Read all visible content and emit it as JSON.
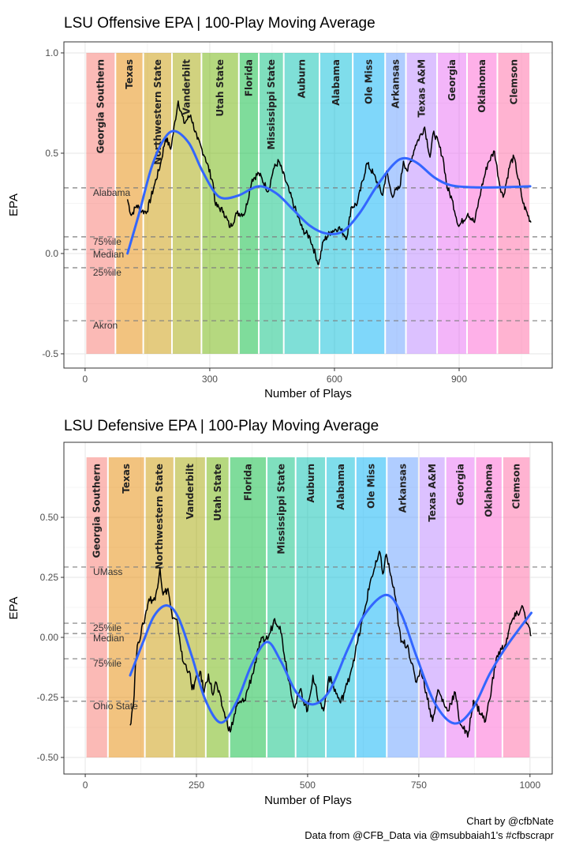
{
  "chart_data": [
    {
      "type": "line",
      "title": "LSU Offensive EPA | 100-Play Moving Average",
      "xlabel": "Number of Plays",
      "ylabel": "EPA",
      "xlim": [
        -51,
        1124
      ],
      "ylim": [
        -0.571,
        1.055
      ],
      "xticks": [
        {
          "value": 0,
          "label": "0"
        },
        {
          "value": 300,
          "label": "300"
        },
        {
          "value": 600,
          "label": "600"
        },
        {
          "value": 900,
          "label": "900"
        }
      ],
      "yticks": [
        {
          "value": 1.0,
          "label": "1.0"
        },
        {
          "value": 0.5,
          "label": "0.5"
        },
        {
          "value": 0.0,
          "label": "0.0"
        },
        {
          "value": -0.5,
          "label": "-0.5"
        }
      ],
      "xminor": [
        150,
        450,
        750,
        1050
      ],
      "yminor": [
        0.75,
        0.25,
        -0.25
      ],
      "band_range": [
        -0.5,
        1.0
      ],
      "games": [
        {
          "name": "Georgia Southern",
          "start": 1,
          "end": 73
        },
        {
          "name": "Texas",
          "start": 73,
          "end": 140
        },
        {
          "name": "Northwestern State",
          "start": 140,
          "end": 209
        },
        {
          "name": "Vanderbilt",
          "start": 209,
          "end": 280
        },
        {
          "name": "Utah State",
          "start": 280,
          "end": 370
        },
        {
          "name": "Florida",
          "start": 370,
          "end": 418
        },
        {
          "name": "Mississippi State",
          "start": 418,
          "end": 478
        },
        {
          "name": "Auburn",
          "start": 478,
          "end": 564
        },
        {
          "name": "Alabama",
          "start": 564,
          "end": 644
        },
        {
          "name": "Ole Miss",
          "start": 644,
          "end": 722
        },
        {
          "name": "Arkansas",
          "start": 722,
          "end": 772
        },
        {
          "name": "Texas A&M",
          "start": 772,
          "end": 847
        },
        {
          "name": "Georgia",
          "start": 847,
          "end": 919
        },
        {
          "name": "Oklahoma",
          "start": 919,
          "end": 992
        },
        {
          "name": "Clemson",
          "start": 992,
          "end": 1071
        }
      ],
      "reference_lines": [
        {
          "label": "Alabama",
          "value": 0.327
        },
        {
          "label": "75%ile",
          "value": 0.083
        },
        {
          "label": "Median",
          "value": 0.02
        },
        {
          "label": "25%ile",
          "value": -0.071
        },
        {
          "label": "Akron",
          "value": -0.335
        }
      ],
      "moving_average": [
        [
          102,
          0.27
        ],
        [
          111,
          0.19
        ],
        [
          124,
          0.24
        ],
        [
          137,
          0.21
        ],
        [
          149,
          0.21
        ],
        [
          168,
          0.35
        ],
        [
          181,
          0.44
        ],
        [
          194,
          0.58
        ],
        [
          206,
          0.52
        ],
        [
          224,
          0.76
        ],
        [
          238,
          0.65
        ],
        [
          254,
          0.69
        ],
        [
          270,
          0.57
        ],
        [
          289,
          0.48
        ],
        [
          308,
          0.35
        ],
        [
          314,
          0.24
        ],
        [
          333,
          0.21
        ],
        [
          349,
          0.13
        ],
        [
          365,
          0.2
        ],
        [
          384,
          0.2
        ],
        [
          402,
          0.37
        ],
        [
          418,
          0.4
        ],
        [
          441,
          0.31
        ],
        [
          453,
          0.42
        ],
        [
          466,
          0.46
        ],
        [
          491,
          0.31
        ],
        [
          504,
          0.23
        ],
        [
          523,
          0.12
        ],
        [
          541,
          0.08
        ],
        [
          562,
          -0.055
        ],
        [
          573,
          0.06
        ],
        [
          592,
          0.11
        ],
        [
          610,
          0.13
        ],
        [
          630,
          0.08
        ],
        [
          640,
          0.23
        ],
        [
          655,
          0.25
        ],
        [
          678,
          0.45
        ],
        [
          693,
          0.4
        ],
        [
          716,
          0.29
        ],
        [
          725,
          0.41
        ],
        [
          738,
          0.29
        ],
        [
          757,
          0.33
        ],
        [
          766,
          0.46
        ],
        [
          776,
          0.41
        ],
        [
          795,
          0.54
        ],
        [
          817,
          0.63
        ],
        [
          830,
          0.48
        ],
        [
          839,
          0.61
        ],
        [
          861,
          0.48
        ],
        [
          871,
          0.33
        ],
        [
          883,
          0.27
        ],
        [
          899,
          0.135
        ],
        [
          921,
          0.2
        ],
        [
          937,
          0.155
        ],
        [
          953,
          0.32
        ],
        [
          969,
          0.45
        ],
        [
          985,
          0.51
        ],
        [
          997,
          0.35
        ],
        [
          1006,
          0.28
        ],
        [
          1023,
          0.45
        ],
        [
          1032,
          0.48
        ],
        [
          1054,
          0.25
        ],
        [
          1073,
          0.155
        ]
      ],
      "smooth": [
        [
          102,
          0.0
        ],
        [
          130,
          0.2
        ],
        [
          160,
          0.43
        ],
        [
          190,
          0.57
        ],
        [
          216,
          0.61
        ],
        [
          250,
          0.55
        ],
        [
          280,
          0.42
        ],
        [
          310,
          0.31
        ],
        [
          333,
          0.275
        ],
        [
          370,
          0.29
        ],
        [
          418,
          0.335
        ],
        [
          460,
          0.3
        ],
        [
          500,
          0.22
        ],
        [
          540,
          0.14
        ],
        [
          580,
          0.1
        ],
        [
          620,
          0.11
        ],
        [
          660,
          0.2
        ],
        [
          700,
          0.33
        ],
        [
          740,
          0.44
        ],
        [
          767,
          0.475
        ],
        [
          800,
          0.45
        ],
        [
          840,
          0.38
        ],
        [
          880,
          0.34
        ],
        [
          934,
          0.33
        ],
        [
          1000,
          0.33
        ],
        [
          1071,
          0.335
        ]
      ]
    },
    {
      "type": "line",
      "title": "LSU Defensive EPA | 100-Play Moving Average",
      "xlabel": "Number of Plays",
      "ylabel": "EPA",
      "xlim": [
        -48,
        1050
      ],
      "ylim": [
        -0.569,
        0.8125
      ],
      "xticks": [
        {
          "value": 0,
          "label": "0"
        },
        {
          "value": 250,
          "label": "250"
        },
        {
          "value": 500,
          "label": "500"
        },
        {
          "value": 750,
          "label": "750"
        },
        {
          "value": 1000,
          "label": "1000"
        }
      ],
      "yticks": [
        {
          "value": 0.5,
          "label": "0.50"
        },
        {
          "value": 0.25,
          "label": "0.25"
        },
        {
          "value": 0.0,
          "label": "0.00"
        },
        {
          "value": -0.25,
          "label": "-0.25"
        },
        {
          "value": -0.5,
          "label": "-0.50"
        }
      ],
      "xminor": [
        125,
        375,
        625,
        875
      ],
      "yminor": [
        0.625,
        0.375,
        0.125,
        -0.125,
        -0.375
      ],
      "band_range": [
        -0.5,
        0.75
      ],
      "games": [
        {
          "name": "Georgia Southern",
          "start": 1,
          "end": 51
        },
        {
          "name": "Texas",
          "start": 51,
          "end": 134
        },
        {
          "name": "Northwestern State",
          "start": 134,
          "end": 200
        },
        {
          "name": "Vanderbilt",
          "start": 200,
          "end": 271
        },
        {
          "name": "Utah State",
          "start": 271,
          "end": 324
        },
        {
          "name": "Florida",
          "start": 324,
          "end": 408
        },
        {
          "name": "Mississippi State",
          "start": 408,
          "end": 473
        },
        {
          "name": "Auburn",
          "start": 473,
          "end": 541
        },
        {
          "name": "Alabama",
          "start": 541,
          "end": 608
        },
        {
          "name": "Ole Miss",
          "start": 608,
          "end": 678
        },
        {
          "name": "Arkansas",
          "start": 678,
          "end": 750
        },
        {
          "name": "Texas A&M",
          "start": 750,
          "end": 810
        },
        {
          "name": "Georgia",
          "start": 810,
          "end": 877
        },
        {
          "name": "Oklahoma",
          "start": 877,
          "end": 938
        },
        {
          "name": "Clemson",
          "start": 938,
          "end": 1001
        }
      ],
      "reference_lines": [
        {
          "label": "UMass",
          "value": 0.293
        },
        {
          "label": "25%ile",
          "value": 0.059
        },
        {
          "label": "Median",
          "value": 0.016
        },
        {
          "label": "75%ile",
          "value": -0.089
        },
        {
          "label": "Ohio State",
          "value": -0.266
        }
      ],
      "moving_average": [
        [
          101,
          -0.366
        ],
        [
          110,
          -0.24
        ],
        [
          113,
          -0.11
        ],
        [
          119,
          -0.02
        ],
        [
          131,
          0.056
        ],
        [
          143,
          0.16
        ],
        [
          157,
          0.155
        ],
        [
          168,
          0.29
        ],
        [
          175,
          0.177
        ],
        [
          186,
          0.204
        ],
        [
          196,
          0.078
        ],
        [
          208,
          0.056
        ],
        [
          219,
          -0.098
        ],
        [
          234,
          -0.141
        ],
        [
          240,
          -0.218
        ],
        [
          258,
          -0.141
        ],
        [
          267,
          -0.229
        ],
        [
          277,
          -0.152
        ],
        [
          287,
          -0.24
        ],
        [
          293,
          -0.185
        ],
        [
          311,
          -0.306
        ],
        [
          326,
          -0.394
        ],
        [
          341,
          -0.284
        ],
        [
          358,
          -0.262
        ],
        [
          376,
          -0.152
        ],
        [
          394,
          -0.02
        ],
        [
          412,
          0.001
        ],
        [
          426,
          0.078
        ],
        [
          438,
          0.046
        ],
        [
          453,
          -0.13
        ],
        [
          471,
          -0.295
        ],
        [
          483,
          -0.218
        ],
        [
          500,
          -0.306
        ],
        [
          512,
          -0.158
        ],
        [
          521,
          -0.24
        ],
        [
          536,
          -0.306
        ],
        [
          548,
          -0.163
        ],
        [
          574,
          -0.273
        ],
        [
          589,
          -0.196
        ],
        [
          607,
          -0.065
        ],
        [
          628,
          0.111
        ],
        [
          642,
          0.242
        ],
        [
          663,
          0.352
        ],
        [
          669,
          0.264
        ],
        [
          677,
          0.346
        ],
        [
          696,
          0.177
        ],
        [
          710,
          -0.02
        ],
        [
          725,
          -0.032
        ],
        [
          743,
          -0.185
        ],
        [
          755,
          -0.13
        ],
        [
          781,
          -0.35
        ],
        [
          793,
          -0.218
        ],
        [
          814,
          -0.306
        ],
        [
          832,
          -0.229
        ],
        [
          840,
          -0.339
        ],
        [
          860,
          -0.415
        ],
        [
          873,
          -0.262
        ],
        [
          900,
          -0.35
        ],
        [
          926,
          -0.076
        ],
        [
          944,
          -0.032
        ],
        [
          959,
          0.067
        ],
        [
          968,
          0.089
        ],
        [
          984,
          0.127
        ],
        [
          994,
          0.056
        ],
        [
          1003,
          0.007
        ]
      ],
      "smooth": [
        [
          101,
          -0.158
        ],
        [
          130,
          -0.02
        ],
        [
          155,
          0.09
        ],
        [
          184,
          0.133
        ],
        [
          210,
          0.08
        ],
        [
          240,
          -0.08
        ],
        [
          270,
          -0.26
        ],
        [
          305,
          -0.355
        ],
        [
          340,
          -0.27
        ],
        [
          375,
          -0.11
        ],
        [
          409,
          -0.019
        ],
        [
          440,
          -0.1
        ],
        [
          475,
          -0.23
        ],
        [
          512,
          -0.279
        ],
        [
          550,
          -0.22
        ],
        [
          590,
          -0.05
        ],
        [
          630,
          0.1
        ],
        [
          677,
          0.177
        ],
        [
          710,
          0.1
        ],
        [
          745,
          -0.08
        ],
        [
          785,
          -0.27
        ],
        [
          829,
          -0.358
        ],
        [
          870,
          -0.3
        ],
        [
          910,
          -0.15
        ],
        [
          950,
          -0.03
        ],
        [
          1003,
          0.102
        ]
      ]
    }
  ],
  "colors": {
    "bands": [
      "#F8766D",
      "#E58700",
      "#C99800",
      "#A3A500",
      "#6BB100",
      "#00BA38",
      "#00BF7D",
      "#00C0AF",
      "#00BCD8",
      "#00B0F6",
      "#619CFF",
      "#B983FF",
      "#E76BF3",
      "#FD61D1",
      "#FF67A4"
    ],
    "smooth": "#3366FF",
    "line": "#000000",
    "reference": "#7f7f7f"
  },
  "caption": {
    "line1": "Chart by @cfbNate",
    "line2": "Data from @CFB_Data via @msubbaiah1's #cfbscrapr"
  }
}
